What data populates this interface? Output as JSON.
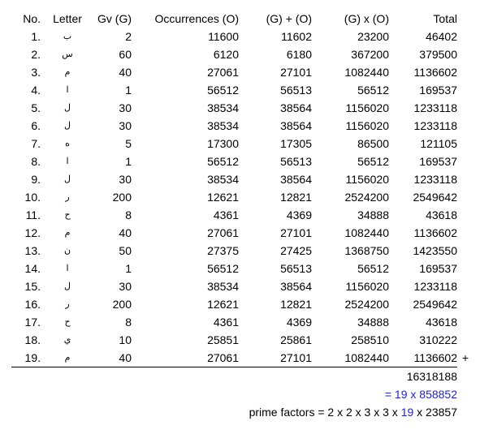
{
  "table": {
    "headers": {
      "no": "No.",
      "letter": "Letter",
      "gv": "Gv (G)",
      "occurrences": "Occurrences (O)",
      "sum": "(G) + (O)",
      "product": "(G) x (O)",
      "total": "Total"
    },
    "rows": [
      {
        "no": "1.",
        "letter": "ب",
        "gv": "2",
        "occ": "11600",
        "sum": "11602",
        "prod": "23200",
        "total": "46402"
      },
      {
        "no": "2.",
        "letter": "س",
        "gv": "60",
        "occ": "6120",
        "sum": "6180",
        "prod": "367200",
        "total": "379500"
      },
      {
        "no": "3.",
        "letter": "م",
        "gv": "40",
        "occ": "27061",
        "sum": "27101",
        "prod": "1082440",
        "total": "1136602"
      },
      {
        "no": "4.",
        "letter": "ا",
        "gv": "1",
        "occ": "56512",
        "sum": "56513",
        "prod": "56512",
        "total": "169537"
      },
      {
        "no": "5.",
        "letter": "ل",
        "gv": "30",
        "occ": "38534",
        "sum": "38564",
        "prod": "1156020",
        "total": "1233118"
      },
      {
        "no": "6.",
        "letter": "ل",
        "gv": "30",
        "occ": "38534",
        "sum": "38564",
        "prod": "1156020",
        "total": "1233118"
      },
      {
        "no": "7.",
        "letter": "ه",
        "gv": "5",
        "occ": "17300",
        "sum": "17305",
        "prod": "86500",
        "total": "121105"
      },
      {
        "no": "8.",
        "letter": "ا",
        "gv": "1",
        "occ": "56512",
        "sum": "56513",
        "prod": "56512",
        "total": "169537"
      },
      {
        "no": "9.",
        "letter": "ل",
        "gv": "30",
        "occ": "38534",
        "sum": "38564",
        "prod": "1156020",
        "total": "1233118"
      },
      {
        "no": "10.",
        "letter": "ر",
        "gv": "200",
        "occ": "12621",
        "sum": "12821",
        "prod": "2524200",
        "total": "2549642"
      },
      {
        "no": "11.",
        "letter": "ح",
        "gv": "8",
        "occ": "4361",
        "sum": "4369",
        "prod": "34888",
        "total": "43618"
      },
      {
        "no": "12.",
        "letter": "م",
        "gv": "40",
        "occ": "27061",
        "sum": "27101",
        "prod": "1082440",
        "total": "1136602"
      },
      {
        "no": "13.",
        "letter": "ن",
        "gv": "50",
        "occ": "27375",
        "sum": "27425",
        "prod": "1368750",
        "total": "1423550"
      },
      {
        "no": "14.",
        "letter": "ا",
        "gv": "1",
        "occ": "56512",
        "sum": "56513",
        "prod": "56512",
        "total": "169537"
      },
      {
        "no": "15.",
        "letter": "ل",
        "gv": "30",
        "occ": "38534",
        "sum": "38564",
        "prod": "1156020",
        "total": "1233118"
      },
      {
        "no": "16.",
        "letter": "ر",
        "gv": "200",
        "occ": "12621",
        "sum": "12821",
        "prod": "2524200",
        "total": "2549642"
      },
      {
        "no": "17.",
        "letter": "ح",
        "gv": "8",
        "occ": "4361",
        "sum": "4369",
        "prod": "34888",
        "total": "43618"
      },
      {
        "no": "18.",
        "letter": "ي",
        "gv": "10",
        "occ": "25851",
        "sum": "25861",
        "prod": "258510",
        "total": "310222"
      },
      {
        "no": "19.",
        "letter": "م",
        "gv": "40",
        "occ": "27061",
        "sum": "27101",
        "prod": "1082440",
        "total": "1136602"
      }
    ],
    "plus_sign": "+"
  },
  "summary": {
    "grand_total": "16318188",
    "division": "= 19 x 858852",
    "prime_prefix": "prime factors = 2 x 2 x 3 x 3 x ",
    "prime_highlight": "19",
    "prime_suffix": " x 23857",
    "highlight_color": "#1f1fd6"
  }
}
